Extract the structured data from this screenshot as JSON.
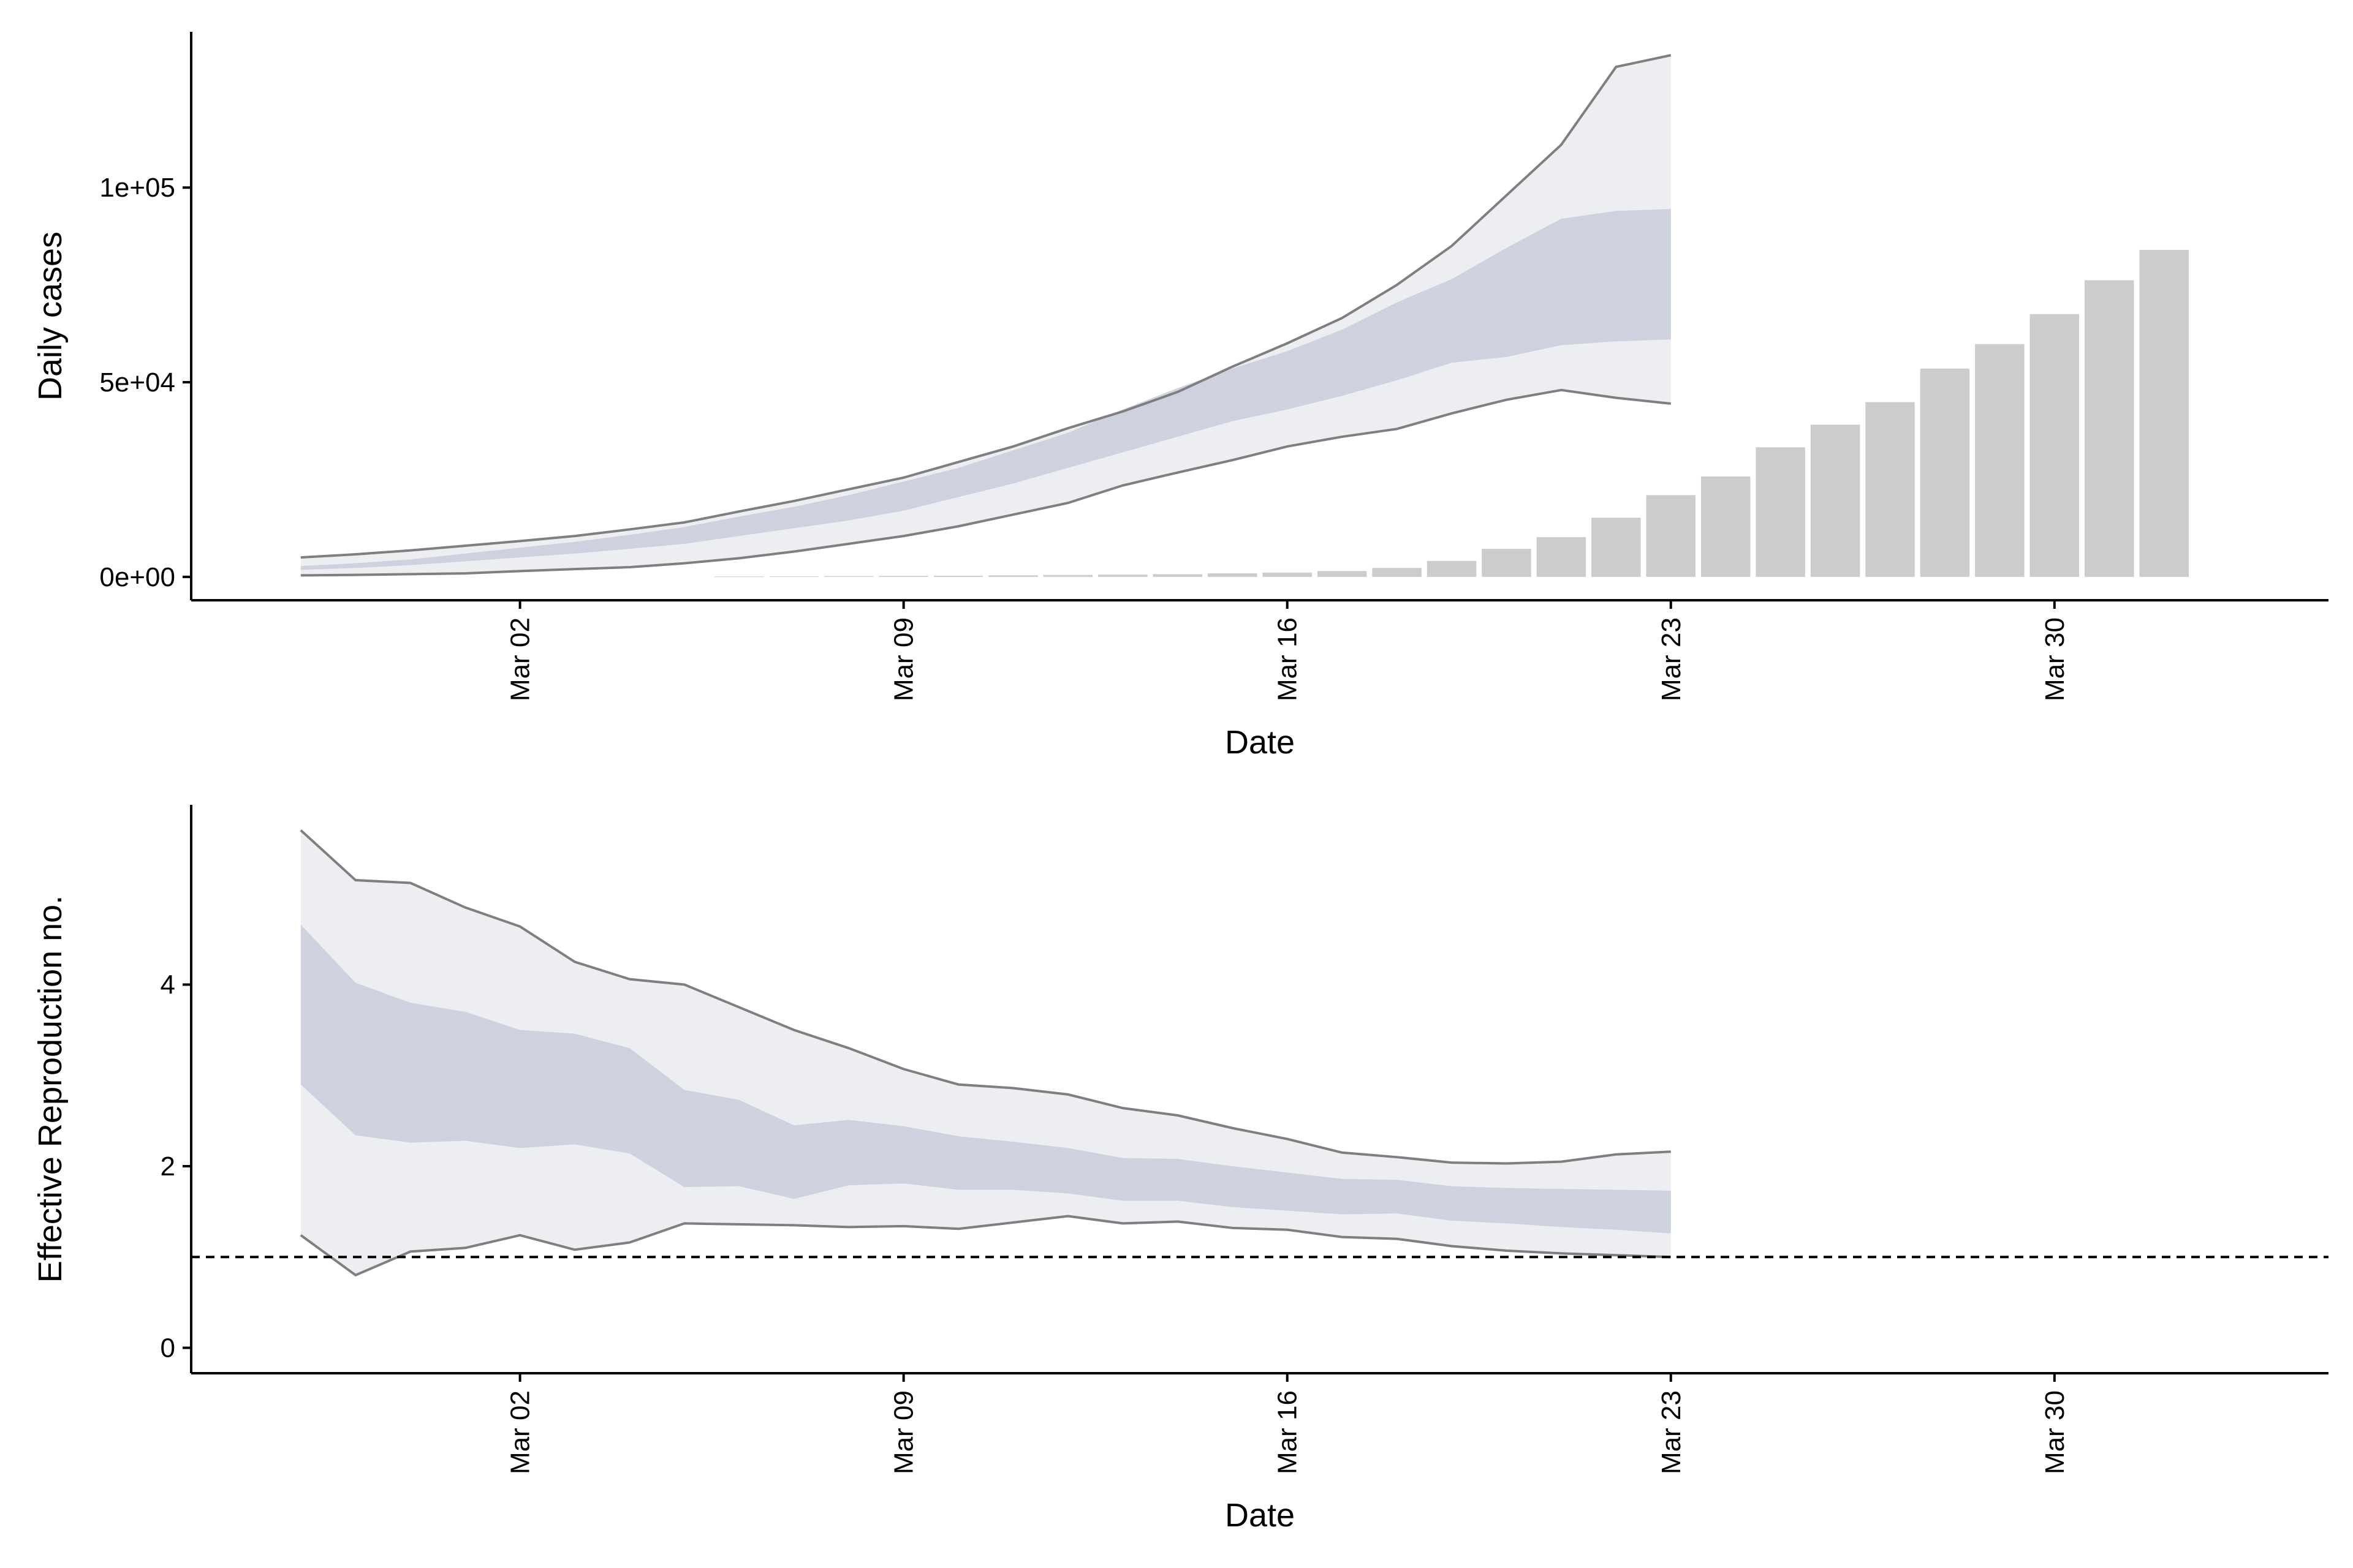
{
  "colors": {
    "bar": "#cccccc",
    "band_outer": "#ebecf1",
    "band_inner": "#c8ccdb",
    "bound_line": "#7f7f7f",
    "reference_line": "#000000",
    "axis": "#000000",
    "background": "#ffffff"
  },
  "chart_data": [
    {
      "type": "bar",
      "xlabel": "Date",
      "ylabel": "Daily cases",
      "x_range": [
        "2020-02-25",
        "2020-04-04"
      ],
      "x_ticks": [
        {
          "date": "2020-03-02",
          "label": "Mar 02"
        },
        {
          "date": "2020-03-09",
          "label": "Mar 09"
        },
        {
          "date": "2020-03-16",
          "label": "Mar 16"
        },
        {
          "date": "2020-03-23",
          "label": "Mar 23"
        },
        {
          "date": "2020-03-30",
          "label": "Mar 30"
        }
      ],
      "ylim": [
        -6000,
        140000
      ],
      "y_ticks": [
        {
          "value": 0,
          "label": "0e+00"
        },
        {
          "value": 50000,
          "label": "5e+04"
        },
        {
          "value": 100000,
          "label": "1e+05"
        }
      ],
      "grid": false,
      "bars": {
        "dates": [
          "2020-03-06",
          "2020-03-07",
          "2020-03-08",
          "2020-03-09",
          "2020-03-10",
          "2020-03-11",
          "2020-03-12",
          "2020-03-13",
          "2020-03-14",
          "2020-03-15",
          "2020-03-16",
          "2020-03-17",
          "2020-03-18",
          "2020-03-19",
          "2020-03-20",
          "2020-03-21",
          "2020-03-22",
          "2020-03-23",
          "2020-03-24",
          "2020-03-25",
          "2020-03-26",
          "2020-03-27",
          "2020-03-28",
          "2020-03-29",
          "2020-03-30",
          "2020-03-31",
          "2020-04-01"
        ],
        "values": [
          100,
          150,
          200,
          250,
          300,
          400,
          500,
          600,
          700,
          900,
          1100,
          1500,
          2300,
          4100,
          7200,
          10200,
          15200,
          21000,
          25800,
          33300,
          39100,
          44900,
          53500,
          59800,
          67500,
          76200,
          84000
        ]
      },
      "bands": {
        "dates": [
          "2020-02-27",
          "2020-02-28",
          "2020-02-29",
          "2020-03-01",
          "2020-03-02",
          "2020-03-03",
          "2020-03-04",
          "2020-03-05",
          "2020-03-06",
          "2020-03-07",
          "2020-03-08",
          "2020-03-09",
          "2020-03-10",
          "2020-03-11",
          "2020-03-12",
          "2020-03-13",
          "2020-03-14",
          "2020-03-15",
          "2020-03-16",
          "2020-03-17",
          "2020-03-18",
          "2020-03-19",
          "2020-03-20",
          "2020-03-21",
          "2020-03-22",
          "2020-03-23"
        ],
        "outer_lower": [
          400,
          500,
          700,
          900,
          1500,
          2000,
          2500,
          3500,
          4800,
          6500,
          8500,
          10500,
          13000,
          16000,
          19000,
          23500,
          26800,
          30000,
          33500,
          36000,
          38000,
          42000,
          45500,
          48000,
          46000,
          44500
        ],
        "outer_upper": [
          5000,
          5800,
          6800,
          8000,
          9200,
          10500,
          12200,
          14000,
          16800,
          19500,
          22500,
          25500,
          29500,
          33500,
          38200,
          42500,
          47500,
          54000,
          60000,
          66500,
          75000,
          85000,
          98000,
          111000,
          131000,
          134000
        ],
        "inner_lower": [
          1800,
          2300,
          3000,
          4000,
          5000,
          6000,
          7200,
          8500,
          10500,
          12500,
          14500,
          17000,
          20500,
          24000,
          28000,
          32000,
          36000,
          40000,
          43000,
          46500,
          50500,
          55000,
          56500,
          59500,
          60500,
          61000
        ],
        "inner_upper": [
          2800,
          3500,
          4500,
          6000,
          7500,
          9000,
          10800,
          12800,
          15500,
          18000,
          21000,
          24500,
          28000,
          32500,
          37000,
          43000,
          48500,
          53500,
          58000,
          63500,
          70500,
          76500,
          84500,
          92000,
          94000,
          94500
        ]
      }
    },
    {
      "type": "area",
      "xlabel": "Date",
      "ylabel": "Effective Reproduction no.",
      "x_range": [
        "2020-02-25",
        "2020-04-04"
      ],
      "x_ticks": [
        {
          "date": "2020-03-02",
          "label": "Mar 02"
        },
        {
          "date": "2020-03-09",
          "label": "Mar 09"
        },
        {
          "date": "2020-03-16",
          "label": "Mar 16"
        },
        {
          "date": "2020-03-23",
          "label": "Mar 23"
        },
        {
          "date": "2020-03-30",
          "label": "Mar 30"
        }
      ],
      "ylim": [
        -0.28,
        5.98
      ],
      "y_ticks": [
        {
          "value": 0,
          "label": "0"
        },
        {
          "value": 2,
          "label": "2"
        },
        {
          "value": 4,
          "label": "4"
        }
      ],
      "grid": false,
      "reference_line": 1,
      "bands": {
        "dates": [
          "2020-02-27",
          "2020-02-28",
          "2020-02-29",
          "2020-03-01",
          "2020-03-02",
          "2020-03-03",
          "2020-03-04",
          "2020-03-05",
          "2020-03-06",
          "2020-03-07",
          "2020-03-08",
          "2020-03-09",
          "2020-03-10",
          "2020-03-11",
          "2020-03-12",
          "2020-03-13",
          "2020-03-14",
          "2020-03-15",
          "2020-03-16",
          "2020-03-17",
          "2020-03-18",
          "2020-03-19",
          "2020-03-20",
          "2020-03-21",
          "2020-03-22",
          "2020-03-23"
        ],
        "outer_lower": [
          1.24,
          0.8,
          1.06,
          1.1,
          1.24,
          1.08,
          1.16,
          1.37,
          1.36,
          1.35,
          1.33,
          1.34,
          1.31,
          1.38,
          1.45,
          1.37,
          1.39,
          1.32,
          1.3,
          1.22,
          1.2,
          1.12,
          1.07,
          1.04,
          1.02,
          1.0
        ],
        "outer_upper": [
          5.7,
          5.15,
          5.12,
          4.85,
          4.64,
          4.25,
          4.06,
          4.0,
          3.75,
          3.5,
          3.3,
          3.07,
          2.9,
          2.86,
          2.79,
          2.64,
          2.56,
          2.42,
          2.3,
          2.15,
          2.1,
          2.04,
          2.03,
          2.05,
          2.13,
          2.16
        ],
        "inner_lower": [
          2.9,
          2.34,
          2.26,
          2.28,
          2.2,
          2.24,
          2.14,
          1.77,
          1.78,
          1.64,
          1.79,
          1.81,
          1.74,
          1.74,
          1.7,
          1.62,
          1.62,
          1.55,
          1.51,
          1.47,
          1.48,
          1.4,
          1.37,
          1.33,
          1.3,
          1.26
        ],
        "inner_upper": [
          4.66,
          4.02,
          3.8,
          3.7,
          3.5,
          3.46,
          3.3,
          2.84,
          2.73,
          2.45,
          2.51,
          2.44,
          2.33,
          2.27,
          2.2,
          2.09,
          2.08,
          2.0,
          1.93,
          1.86,
          1.85,
          1.78,
          1.76,
          1.75,
          1.74,
          1.73
        ]
      }
    }
  ]
}
